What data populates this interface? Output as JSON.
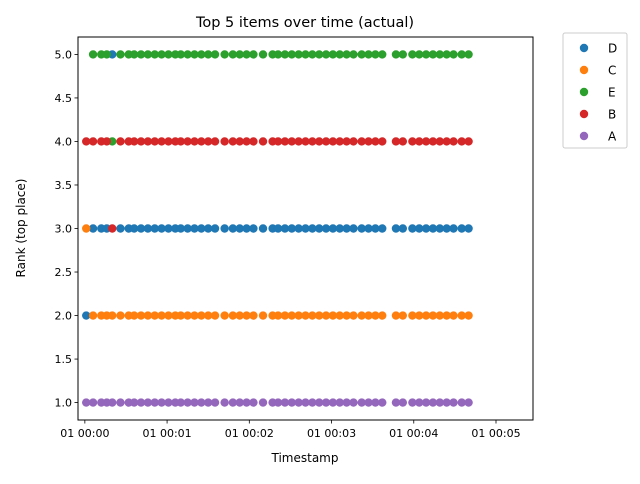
{
  "chart_data": {
    "type": "scatter",
    "title": "Top 5 items over time (actual)",
    "xlabel": "Timestamp",
    "ylabel": "Rank (top place)",
    "ylim": [
      0.8,
      5.2
    ],
    "xlim_seconds": [
      -5,
      327
    ],
    "x_unit": "seconds",
    "y_ticks": [
      "1.0",
      "1.5",
      "2.0",
      "2.5",
      "3.0",
      "3.5",
      "4.0",
      "4.5",
      "5.0"
    ],
    "x_tick_seconds": [
      0,
      60,
      120,
      180,
      240,
      300
    ],
    "x_tick_labels": [
      "01 00:00",
      "01 00:01",
      "01 00:02",
      "01 00:03",
      "01 00:04",
      "01 00:05"
    ],
    "grid": false,
    "legend_position": "outside-top-right",
    "x": [
      1,
      6,
      12,
      16,
      20,
      26,
      32,
      36,
      41,
      46,
      51,
      56,
      61,
      66,
      70,
      75,
      80,
      85,
      90,
      95,
      102,
      108,
      113,
      118,
      123,
      130,
      137,
      141,
      146,
      151,
      156,
      161,
      166,
      171,
      176,
      181,
      186,
      191,
      196,
      202,
      207,
      212,
      217,
      227,
      232,
      239,
      244,
      249,
      254,
      259,
      264,
      269,
      275,
      280
    ],
    "series": [
      {
        "name": "D",
        "color": "#1f77b4",
        "ranks": [
          2,
          3,
          3,
          3,
          5,
          3,
          3,
          3,
          3,
          3,
          3,
          3,
          3,
          3,
          3,
          3,
          3,
          3,
          3,
          3,
          3,
          3,
          3,
          3,
          3,
          3,
          3,
          3,
          3,
          3,
          3,
          3,
          3,
          3,
          3,
          3,
          3,
          3,
          3,
          3,
          3,
          3,
          3,
          3,
          3,
          3,
          3,
          3,
          3,
          3,
          3,
          3,
          3,
          3
        ]
      },
      {
        "name": "C",
        "color": "#ff7f0e",
        "ranks": [
          3,
          2,
          2,
          2,
          2,
          2,
          2,
          2,
          2,
          2,
          2,
          2,
          2,
          2,
          2,
          2,
          2,
          2,
          2,
          2,
          2,
          2,
          2,
          2,
          2,
          2,
          2,
          2,
          2,
          2,
          2,
          2,
          2,
          2,
          2,
          2,
          2,
          2,
          2,
          2,
          2,
          2,
          2,
          2,
          2,
          2,
          2,
          2,
          2,
          2,
          2,
          2,
          2,
          2
        ]
      },
      {
        "name": "E",
        "color": "#2ca02c",
        "ranks": [
          null,
          5,
          5,
          5,
          4,
          5,
          5,
          5,
          5,
          5,
          5,
          5,
          5,
          5,
          5,
          5,
          5,
          5,
          5,
          5,
          5,
          5,
          5,
          5,
          5,
          5,
          5,
          5,
          5,
          5,
          5,
          5,
          5,
          5,
          5,
          5,
          5,
          5,
          5,
          5,
          5,
          5,
          5,
          5,
          5,
          5,
          5,
          5,
          5,
          5,
          5,
          5,
          5,
          5
        ]
      },
      {
        "name": "B",
        "color": "#d62728",
        "ranks": [
          4,
          4,
          4,
          4,
          3,
          4,
          4,
          4,
          4,
          4,
          4,
          4,
          4,
          4,
          4,
          4,
          4,
          4,
          4,
          4,
          4,
          4,
          4,
          4,
          4,
          4,
          4,
          4,
          4,
          4,
          4,
          4,
          4,
          4,
          4,
          4,
          4,
          4,
          4,
          4,
          4,
          4,
          4,
          4,
          4,
          4,
          4,
          4,
          4,
          4,
          4,
          4,
          4,
          4
        ]
      },
      {
        "name": "A",
        "color": "#9467bd",
        "ranks": [
          1,
          1,
          1,
          1,
          1,
          1,
          1,
          1,
          1,
          1,
          1,
          1,
          1,
          1,
          1,
          1,
          1,
          1,
          1,
          1,
          1,
          1,
          1,
          1,
          1,
          1,
          1,
          1,
          1,
          1,
          1,
          1,
          1,
          1,
          1,
          1,
          1,
          1,
          1,
          1,
          1,
          1,
          1,
          1,
          1,
          1,
          1,
          1,
          1,
          1,
          1,
          1,
          1,
          1
        ]
      }
    ]
  }
}
